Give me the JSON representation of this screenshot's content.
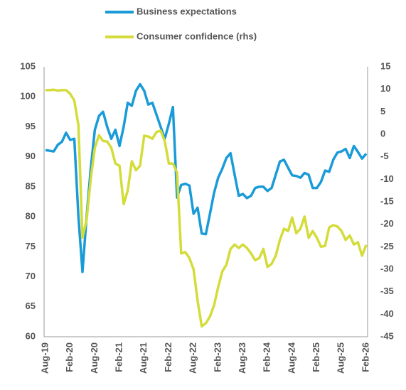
{
  "chart_data": {
    "type": "line",
    "categories": [
      "Aug-19",
      null,
      null,
      null,
      null,
      null,
      "Feb-20",
      null,
      null,
      null,
      null,
      null,
      "Aug-20",
      null,
      null,
      null,
      null,
      null,
      "Feb-21",
      null,
      null,
      null,
      null,
      null,
      "Aug-21",
      null,
      null,
      null,
      null,
      null,
      "Feb-22",
      null,
      null,
      null,
      null,
      null,
      "Aug-22",
      null,
      null,
      null,
      null,
      null,
      "Feb-23",
      null,
      null,
      null,
      null,
      null,
      "Aug-23",
      null,
      null,
      null,
      null,
      null,
      "Feb-24",
      null,
      null,
      null,
      null,
      null,
      "Aug-24",
      null,
      null,
      null,
      null,
      null,
      "Feb-25",
      null,
      null,
      null,
      null,
      null,
      "Aug-25",
      null,
      null,
      null,
      null,
      null,
      "Feb-26"
    ],
    "series": [
      {
        "name": "Business expectations",
        "color": "#1a9bd7",
        "values": [
          91.1,
          91.0,
          90.9,
          92,
          92.5,
          94,
          92.8,
          93,
          80,
          70.8,
          80,
          88,
          94.5,
          96.8,
          97.5,
          95,
          93,
          94.5,
          91.8,
          95,
          99,
          98.5,
          101,
          102.1,
          101,
          98.7,
          99,
          97,
          95,
          93,
          95.5,
          98.3,
          83.2,
          85.3,
          85.5,
          85.2,
          80.5,
          81.5,
          77.2,
          77.1,
          80.5,
          84,
          86.5,
          88,
          89.8,
          90.6,
          87,
          83.5,
          83.8,
          83.1,
          83.5,
          84.8,
          85,
          85,
          84.3,
          84.8,
          87,
          89.2,
          89.5,
          88.2,
          86.9,
          86.8,
          86.5,
          87.3,
          87,
          84.8,
          84.8,
          85.8,
          87.7,
          87.5,
          89.5,
          90.7,
          90.9,
          91.3,
          89.8,
          91.8,
          90.8,
          89.7,
          90.5
        ]
      },
      {
        "name": "Consumer confidence (rhs)",
        "color": "#d4dc3a",
        "axis": "y2",
        "values": [
          9.8,
          9.8,
          9.9,
          9.7,
          9.8,
          9.8,
          9,
          7.5,
          2,
          -23,
          -19,
          -10,
          -3,
          -0.2,
          -1.5,
          -1.6,
          -3,
          -6.5,
          -7,
          -15.5,
          -12.5,
          -6,
          -8,
          -7,
          -0.3,
          -0.5,
          -1,
          0.5,
          0.8,
          -1.5,
          -6.5,
          -6.5,
          -8.5,
          -26.5,
          -26.2,
          -27.5,
          -30,
          -37,
          -42.7,
          -42,
          -40.5,
          -38,
          -34,
          -30.5,
          -29,
          -25.5,
          -24.5,
          -25.3,
          -24.5,
          -25.3,
          -26.5,
          -28,
          -27.5,
          -25.5,
          -29.5,
          -28.8,
          -27,
          -23.5,
          -21,
          -21.5,
          -18.5,
          -22,
          -21,
          -18.3,
          -23,
          -21.5,
          -23,
          -25,
          -24.8,
          -20.7,
          -20.2,
          -20.5,
          -21.5,
          -23.5,
          -22.5,
          -24.5,
          -24,
          -27,
          -24.6
        ]
      }
    ],
    "ylim": [
      60,
      105
    ],
    "yticks": [
      60,
      65,
      70,
      75,
      80,
      85,
      90,
      95,
      100,
      105
    ],
    "y2lim": [
      -45,
      15
    ],
    "y2ticks": [
      -45,
      -40,
      -35,
      -30,
      -25,
      -20,
      -15,
      -10,
      -5,
      0,
      5,
      10,
      15
    ],
    "grid": false
  }
}
